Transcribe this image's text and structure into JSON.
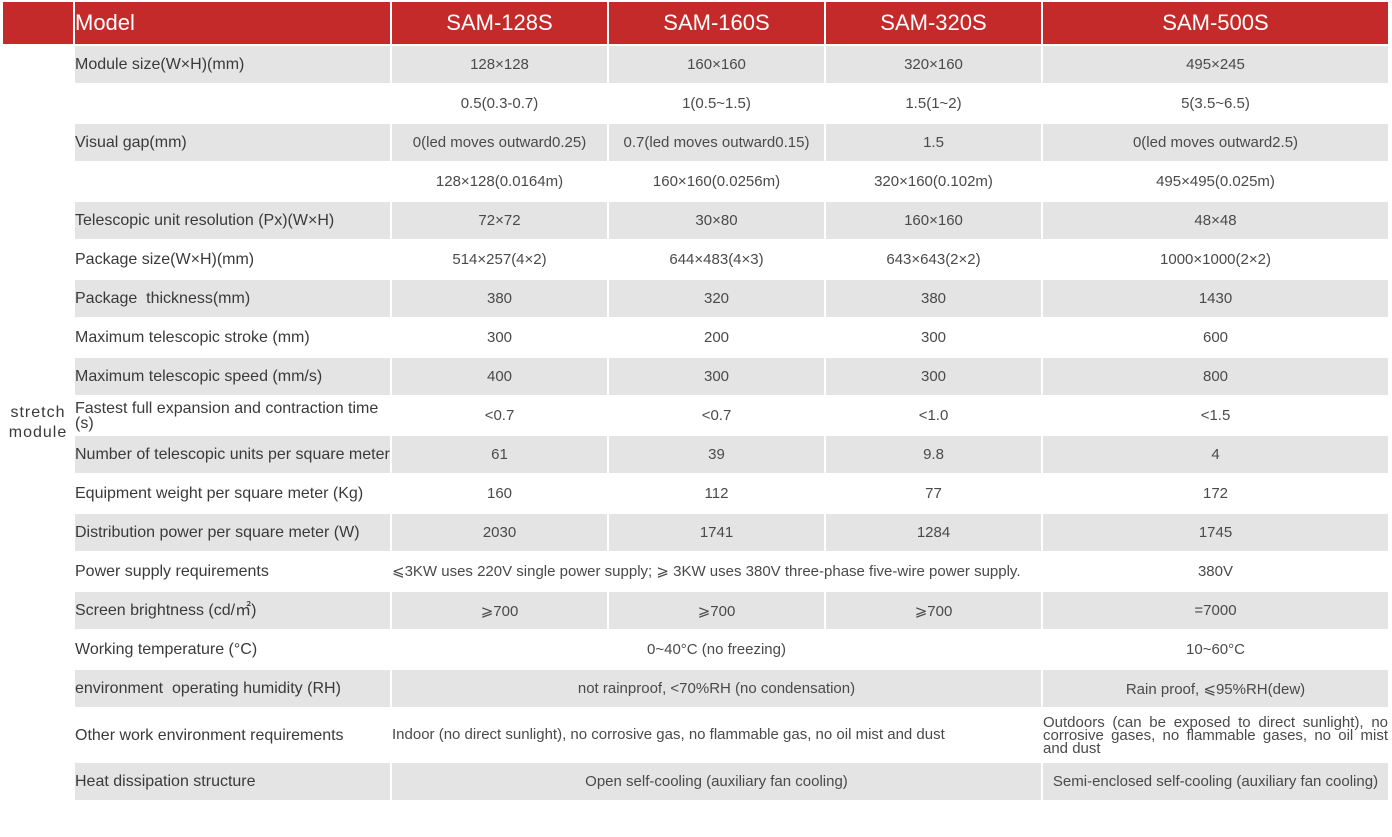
{
  "header": {
    "model_label": "Model",
    "models": [
      "SAM-128S",
      "SAM-160S",
      "SAM-320S",
      "SAM-500S"
    ]
  },
  "group_label": "stretch\nmodule",
  "rows": [
    {
      "label": "Module size(W×H)(mm)",
      "values": [
        "128×128",
        "160×160",
        "320×160",
        "495×245"
      ]
    },
    {
      "label": "",
      "values": [
        "0.5(0.3-0.7)",
        "1(0.5~1.5)",
        "1.5(1~2)",
        "5(3.5~6.5)"
      ]
    },
    {
      "label": "Visual gap(mm)",
      "values": [
        "0(led moves outward0.25)",
        "0.7(led moves outward0.15)",
        "1.5",
        "0(led moves outward2.5)"
      ]
    },
    {
      "label": "",
      "values": [
        "128×128(0.0164m)",
        "160×160(0.0256m)",
        "320×160(0.102m)",
        "495×495(0.025m)"
      ]
    },
    {
      "label": "Telescopic unit resolution (Px)(W×H)",
      "values": [
        "72×72",
        "30×80",
        "160×160",
        "48×48"
      ]
    },
    {
      "label": "Package size(W×H)(mm)",
      "values": [
        "514×257(4×2)",
        "644×483(4×3)",
        "643×643(2×2)",
        "1000×1000(2×2)"
      ]
    },
    {
      "label": "Package  thickness(mm)",
      "values": [
        "380",
        "320",
        "380",
        "1430"
      ]
    },
    {
      "label": "Maximum telescopic stroke (mm)",
      "values": [
        "300",
        "200",
        "300",
        "600"
      ]
    },
    {
      "label": "Maximum telescopic speed (mm/s)",
      "values": [
        "400",
        "300",
        "300",
        "800"
      ]
    },
    {
      "label": "Fastest full expansion and contraction time (s)",
      "values": [
        "<0.7",
        "<0.7",
        "<1.0",
        "<1.5"
      ]
    },
    {
      "label": "Number of telescopic units per square meter",
      "values": [
        "61",
        "39",
        "9.8",
        "4"
      ]
    },
    {
      "label": "Equipment weight per square meter (Kg)",
      "values": [
        "160",
        "112",
        "77",
        "172"
      ]
    },
    {
      "label": "Distribution power per square meter (W)",
      "values": [
        "2030",
        "1741",
        "1284",
        "1745"
      ]
    },
    {
      "label": "Power supply requirements",
      "merged": "⩽3KW uses 220V single power supply; ⩾ 3KW uses 380V three-phase five-wire power supply.",
      "last": "380V"
    },
    {
      "label": "Screen brightness (cd/㎡)",
      "values": [
        "⩾700",
        "⩾700",
        "⩾700",
        "=7000"
      ]
    },
    {
      "label": "Working temperature (°C)",
      "merged": "0~40°C (no freezing)",
      "last": "10~60°C"
    },
    {
      "label": "environment  operating humidity (RH)",
      "merged": "not rainproof, <70%RH (no condensation)",
      "last": "Rain proof, ⩽95%RH(dew)"
    },
    {
      "label": "Other work environment requirements",
      "merged": "Indoor (no direct sunlight), no corrosive gas, no flammable gas, no oil mist and dust",
      "last": "Outdoors (can be exposed to direct sunlight), no corrosive gases, no flammable gases, no oil mist and dust"
    },
    {
      "label": "Heat dissipation structure",
      "merged": "Open self-cooling (auxiliary fan cooling)",
      "last": "Semi-enclosed self-cooling (auxiliary fan cooling)"
    }
  ]
}
